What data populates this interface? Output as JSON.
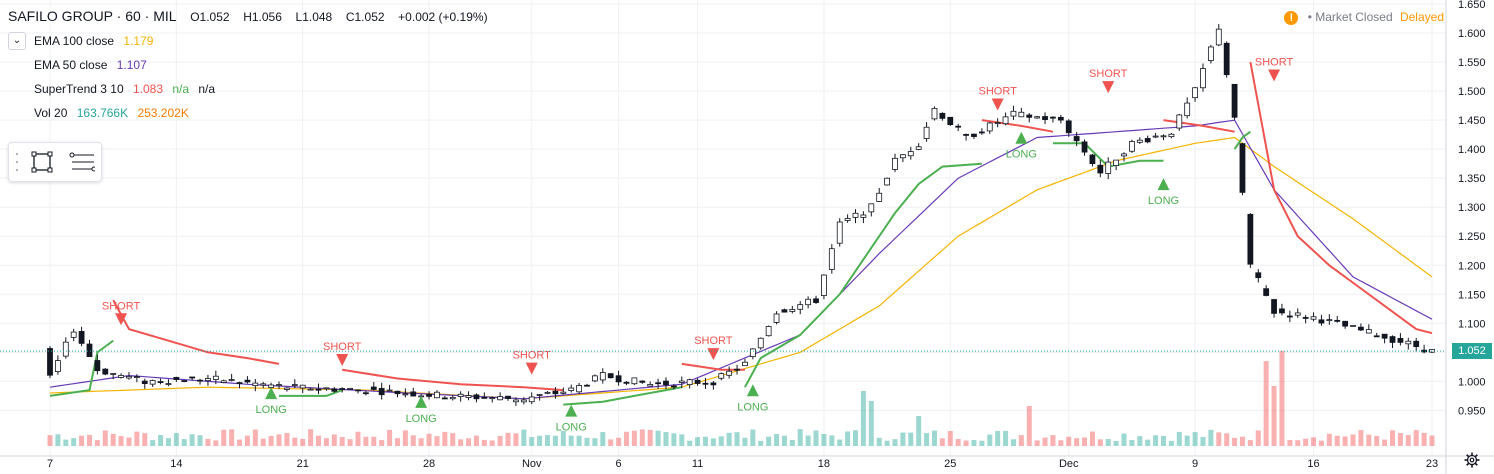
{
  "header": {
    "symbol": "SAFILO GROUP · 60 · MIL",
    "open": "O1.052",
    "high": "H1.056",
    "low": "L1.048",
    "close": "C1.052",
    "change": "+0.002 (+0.19%)"
  },
  "indicators": [
    {
      "name": "EMA 100 close",
      "value": "1.179",
      "color": "#f4b400"
    },
    {
      "name": "EMA 50 close",
      "value": "1.107",
      "color": "#673ab7"
    },
    {
      "name": "SuperTrend 3 10",
      "value": "1.083",
      "value2": "n/a",
      "value3": "n/a",
      "color": "#ef5350"
    },
    {
      "name": "Vol 20",
      "value": "163.766K",
      "value2": "253.202K",
      "color": "#26a69a",
      "color2": "#f57c00"
    }
  ],
  "status": {
    "warning_icon": "!",
    "market": "Market Closed",
    "delay": "Delayed"
  },
  "last_price": "1.052",
  "colors": {
    "up": "#26a69a",
    "down": "#ef5350",
    "ema100": "#f4b400",
    "ema50": "#673ab7",
    "st_long": "#4caf50",
    "st_short": "#ef5350",
    "grid": "#eef0f3"
  },
  "chart_data": {
    "type": "candlestick",
    "title": "SAFILO GROUP · 60 · MIL",
    "ylim": [
      0.93,
      1.65
    ],
    "y_ticks": [
      "1.650",
      "1.600",
      "1.550",
      "1.500",
      "1.450",
      "1.400",
      "1.350",
      "1.300",
      "1.250",
      "1.200",
      "1.150",
      "1.100",
      "1.050",
      "1.000",
      "0.950"
    ],
    "x_ticks": [
      {
        "label": "7",
        "i": 0
      },
      {
        "label": "14",
        "i": 16
      },
      {
        "label": "21",
        "i": 32
      },
      {
        "label": "28",
        "i": 48
      },
      {
        "label": "Nov",
        "i": 61
      },
      {
        "label": "6",
        "i": 72
      },
      {
        "label": "11",
        "i": 82
      },
      {
        "label": "18",
        "i": 98
      },
      {
        "label": "25",
        "i": 114
      },
      {
        "label": "Dec",
        "i": 129
      },
      {
        "label": "9",
        "i": 145
      },
      {
        "label": "16",
        "i": 160
      },
      {
        "label": "23",
        "i": 175
      }
    ],
    "price_path": [
      [
        0,
        1.005
      ],
      [
        3,
        1.09
      ],
      [
        6,
        1.02
      ],
      [
        12,
        1.0
      ],
      [
        20,
        1.005
      ],
      [
        30,
        0.99
      ],
      [
        40,
        0.985
      ],
      [
        50,
        0.975
      ],
      [
        60,
        0.97
      ],
      [
        66,
        0.985
      ],
      [
        70,
        1.01
      ],
      [
        76,
        0.995
      ],
      [
        84,
        1.0
      ],
      [
        88,
        1.03
      ],
      [
        92,
        1.12
      ],
      [
        97,
        1.14
      ],
      [
        100,
        1.27
      ],
      [
        104,
        1.3
      ],
      [
        107,
        1.38
      ],
      [
        110,
        1.41
      ],
      [
        112,
        1.47
      ],
      [
        116,
        1.42
      ],
      [
        119,
        1.44
      ],
      [
        122,
        1.46
      ],
      [
        128,
        1.45
      ],
      [
        133,
        1.36
      ],
      [
        137,
        1.41
      ],
      [
        142,
        1.43
      ],
      [
        145,
        1.5
      ],
      [
        148,
        1.61
      ],
      [
        150,
        1.45
      ],
      [
        152,
        1.2
      ],
      [
        155,
        1.12
      ],
      [
        160,
        1.11
      ],
      [
        168,
        1.08
      ],
      [
        172,
        1.065
      ],
      [
        175,
        1.052
      ]
    ],
    "ema100_path": [
      [
        0,
        0.98
      ],
      [
        20,
        0.99
      ],
      [
        40,
        0.985
      ],
      [
        60,
        0.97
      ],
      [
        80,
        0.99
      ],
      [
        95,
        1.05
      ],
      [
        105,
        1.13
      ],
      [
        115,
        1.25
      ],
      [
        125,
        1.33
      ],
      [
        135,
        1.38
      ],
      [
        145,
        1.41
      ],
      [
        150,
        1.42
      ],
      [
        155,
        1.37
      ],
      [
        165,
        1.28
      ],
      [
        175,
        1.18
      ]
    ],
    "ema50_path": [
      [
        0,
        0.99
      ],
      [
        10,
        1.01
      ],
      [
        25,
        0.995
      ],
      [
        45,
        0.98
      ],
      [
        60,
        0.97
      ],
      [
        80,
        0.995
      ],
      [
        95,
        1.08
      ],
      [
        105,
        1.22
      ],
      [
        115,
        1.35
      ],
      [
        125,
        1.42
      ],
      [
        135,
        1.43
      ],
      [
        145,
        1.44
      ],
      [
        150,
        1.45
      ],
      [
        155,
        1.33
      ],
      [
        165,
        1.18
      ],
      [
        175,
        1.107
      ]
    ],
    "supertrend_segments": [
      {
        "trend": "long",
        "points": [
          [
            0,
            0.975
          ],
          [
            5,
            0.985
          ],
          [
            6,
            1.05
          ],
          [
            7,
            1.06
          ],
          [
            8,
            1.07
          ]
        ]
      },
      {
        "trend": "short",
        "points": [
          [
            8,
            1.14
          ],
          [
            10,
            1.09
          ],
          [
            15,
            1.07
          ],
          [
            20,
            1.05
          ],
          [
            25,
            1.04
          ],
          [
            29,
            1.03
          ]
        ]
      },
      {
        "trend": "long",
        "points": [
          [
            29,
            0.975
          ],
          [
            35,
            0.975
          ],
          [
            36,
            0.98
          ],
          [
            37,
            0.985
          ]
        ]
      },
      {
        "trend": "short",
        "points": [
          [
            37,
            1.02
          ],
          [
            44,
            1.005
          ],
          [
            52,
            0.995
          ],
          [
            60,
            0.99
          ],
          [
            65,
            0.985
          ]
        ]
      },
      {
        "trend": "long",
        "points": [
          [
            65,
            0.96
          ],
          [
            70,
            0.965
          ],
          [
            74,
            0.975
          ],
          [
            78,
            0.985
          ],
          [
            80,
            0.99
          ]
        ]
      },
      {
        "trend": "short",
        "points": [
          [
            80,
            1.03
          ],
          [
            85,
            1.02
          ],
          [
            88,
            1.02
          ]
        ]
      },
      {
        "trend": "long",
        "points": [
          [
            88,
            0.99
          ],
          [
            90,
            1.04
          ],
          [
            95,
            1.08
          ],
          [
            100,
            1.15
          ],
          [
            103,
            1.21
          ],
          [
            107,
            1.29
          ],
          [
            110,
            1.34
          ],
          [
            113,
            1.37
          ],
          [
            118,
            1.375
          ]
        ]
      },
      {
        "trend": "short",
        "points": [
          [
            118,
            1.45
          ],
          [
            123,
            1.44
          ],
          [
            127,
            1.43
          ]
        ]
      },
      {
        "trend": "long",
        "points": [
          [
            127,
            1.41
          ],
          [
            131,
            1.41
          ],
          [
            134,
            1.37
          ],
          [
            138,
            1.38
          ],
          [
            141,
            1.38
          ]
        ]
      },
      {
        "trend": "short",
        "points": [
          [
            141,
            1.45
          ],
          [
            146,
            1.44
          ],
          [
            150,
            1.43
          ]
        ]
      },
      {
        "trend": "long",
        "points": [
          [
            150,
            1.4
          ],
          [
            151,
            1.42
          ],
          [
            152,
            1.43
          ]
        ]
      },
      {
        "trend": "short",
        "points": [
          [
            152,
            1.55
          ],
          [
            155,
            1.33
          ],
          [
            158,
            1.25
          ],
          [
            162,
            1.2
          ],
          [
            166,
            1.16
          ],
          [
            170,
            1.12
          ],
          [
            173,
            1.09
          ],
          [
            175,
            1.083
          ]
        ]
      }
    ],
    "signals": [
      {
        "label": "SHORT",
        "i": 9,
        "y": 1.1,
        "dir": "down"
      },
      {
        "label": "LONG",
        "i": 28,
        "y": 0.99,
        "dir": "up"
      },
      {
        "label": "SHORT",
        "i": 37,
        "y": 1.03,
        "dir": "down"
      },
      {
        "label": "LONG",
        "i": 47,
        "y": 0.975,
        "dir": "up"
      },
      {
        "label": "SHORT",
        "i": 61,
        "y": 1.015,
        "dir": "down"
      },
      {
        "label": "LONG",
        "i": 66,
        "y": 0.96,
        "dir": "up"
      },
      {
        "label": "SHORT",
        "i": 84,
        "y": 1.04,
        "dir": "down"
      },
      {
        "label": "LONG",
        "i": 89,
        "y": 0.995,
        "dir": "up"
      },
      {
        "label": "SHORT",
        "i": 120,
        "y": 1.47,
        "dir": "down"
      },
      {
        "label": "LONG",
        "i": 123,
        "y": 1.43,
        "dir": "up"
      },
      {
        "label": "SHORT",
        "i": 134,
        "y": 1.5,
        "dir": "down"
      },
      {
        "label": "LONG",
        "i": 141,
        "y": 1.35,
        "dir": "up"
      },
      {
        "label": "SHORT",
        "i": 155,
        "y": 1.52,
        "dir": "down"
      }
    ],
    "volume_spikes": [
      {
        "i": 103,
        "v": 0.55
      },
      {
        "i": 104,
        "v": 0.45
      },
      {
        "i": 154,
        "v": 0.85
      },
      {
        "i": 155,
        "v": 0.6
      },
      {
        "i": 156,
        "v": 0.95
      },
      {
        "i": 124,
        "v": 0.4
      },
      {
        "i": 110,
        "v": 0.3
      }
    ],
    "last_close": 1.052
  }
}
